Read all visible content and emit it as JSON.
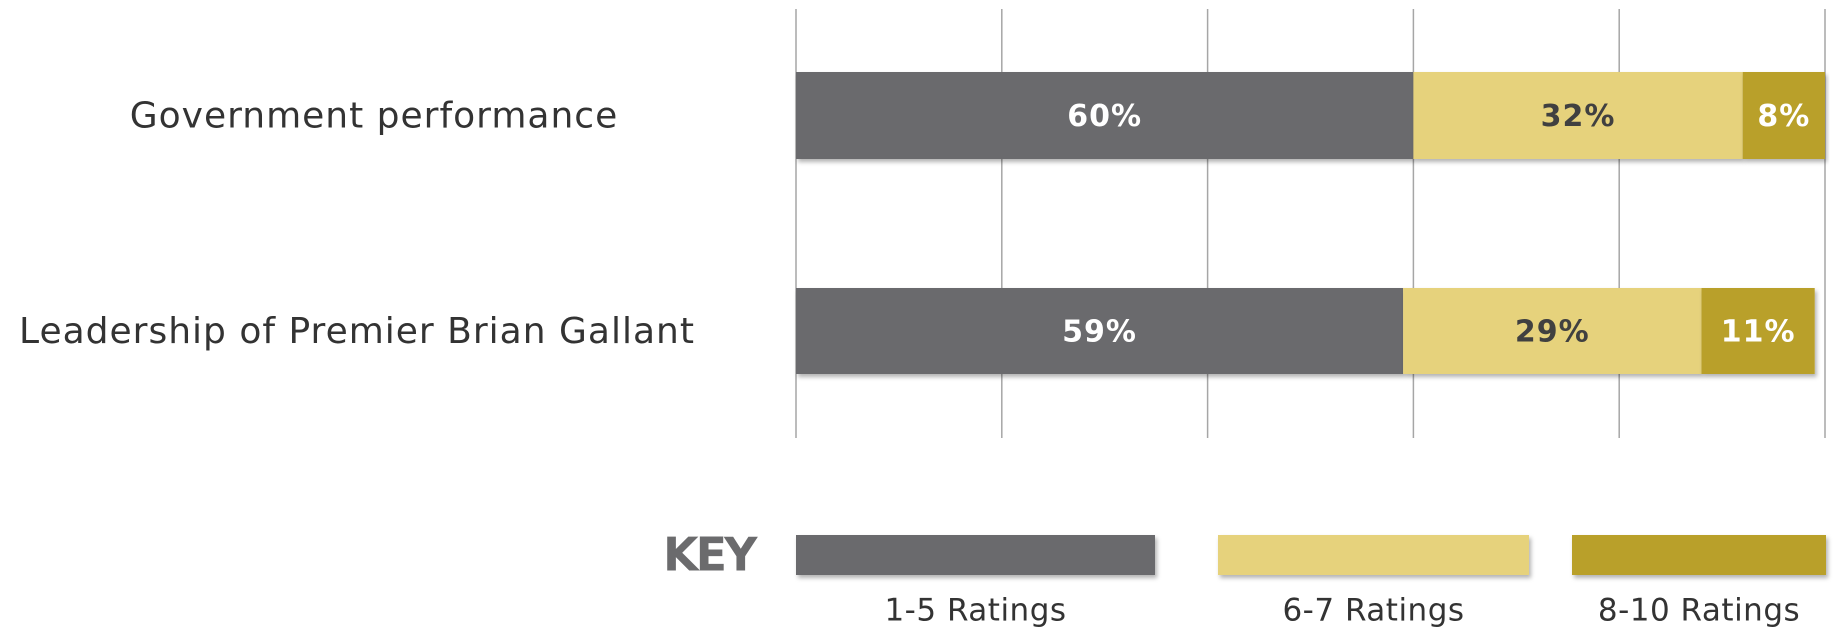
{
  "chart_data": {
    "type": "stacked-bar-horizontal",
    "categories": [
      "Government performance",
      "Leadership of Premier Brian Gallant"
    ],
    "series": [
      {
        "name": "1-5 Ratings",
        "color": "#6b6b6d",
        "values": [
          60,
          59
        ],
        "value_labels": [
          "60%",
          "59%"
        ]
      },
      {
        "name": "6-7 Ratings",
        "color": "#e6d27c",
        "values": [
          32,
          29
        ],
        "value_labels": [
          "32%",
          "29%"
        ]
      },
      {
        "name": "8-10 Ratings",
        "color": "#b9a02b",
        "values": [
          8,
          11
        ],
        "value_labels": [
          "8%",
          "11%"
        ]
      }
    ],
    "xlim": [
      0,
      100
    ],
    "xticks": [
      0,
      20,
      40,
      60,
      80,
      100
    ],
    "grid": true,
    "legend_title": "KEY",
    "legend_position": "bottom"
  }
}
